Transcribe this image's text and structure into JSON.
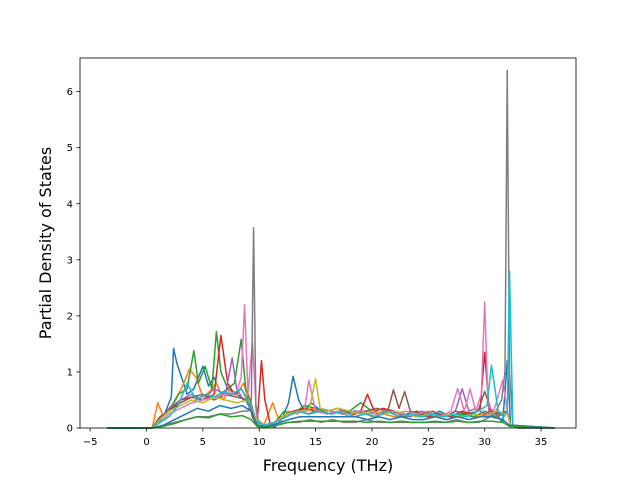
{
  "chart_data": {
    "type": "line",
    "title": "",
    "xlabel": "Frequency (THz)",
    "ylabel": "Partial Density of States",
    "xlim": [
      -5.9,
      38.1
    ],
    "ylim": [
      0,
      6.6
    ],
    "xticks": [
      -5,
      0,
      5,
      10,
      15,
      20,
      25,
      30,
      35
    ],
    "yticks": [
      0,
      1,
      2,
      3,
      4,
      5,
      6
    ],
    "grid": false,
    "legend": "none",
    "series": [
      {
        "color": "#1f77b4",
        "x": [
          -3.5,
          0.5,
          1.0,
          1.6,
          2.2,
          2.4,
          2.7,
          3.2,
          3.6,
          4.2,
          5.0,
          5.5,
          6.0,
          6.6,
          7.2,
          8.0,
          8.8,
          9.2,
          9.6,
          10.3,
          11.4,
          12.0,
          12.6,
          13.0,
          13.5,
          14.0,
          14.6,
          15.2,
          16.0,
          17.0,
          18.0,
          19.0,
          20.0,
          21.0,
          22.0,
          23.0,
          24.0,
          25.0,
          26.0,
          27.0,
          28.0,
          29.0,
          29.8,
          30.4,
          31.0,
          31.6,
          32.0,
          32.3,
          33.0,
          36.2
        ],
        "y": [
          0,
          0,
          0.08,
          0.25,
          0.55,
          1.42,
          1.15,
          0.85,
          0.6,
          0.7,
          1.1,
          0.75,
          0.9,
          0.6,
          0.7,
          0.6,
          0.5,
          0.35,
          0.2,
          0.05,
          0.02,
          0.15,
          0.45,
          0.92,
          0.5,
          0.3,
          0.45,
          0.35,
          0.25,
          0.3,
          0.3,
          0.25,
          0.3,
          0.25,
          0.3,
          0.2,
          0.25,
          0.2,
          0.3,
          0.2,
          0.25,
          0.2,
          0.2,
          0.3,
          0.25,
          0.1,
          1.2,
          0.05,
          0,
          0
        ]
      },
      {
        "color": "#ff7f0e",
        "x": [
          -3.5,
          0.5,
          1.0,
          1.5,
          2.0,
          2.6,
          3.2,
          3.8,
          4.4,
          5.0,
          5.6,
          6.2,
          6.8,
          7.4,
          8.0,
          8.6,
          9.2,
          9.6,
          10.4,
          11.2,
          11.8,
          12.6,
          13.4,
          14.2,
          15.0,
          16.0,
          17.0,
          18.0,
          19.0,
          20.0,
          21.0,
          22.0,
          23.0,
          24.0,
          25.0,
          26.0,
          27.0,
          28.0,
          29.0,
          30.0,
          31.0,
          32.0,
          32.3,
          36.2
        ],
        "y": [
          0,
          0,
          0.45,
          0.2,
          0.35,
          0.5,
          0.75,
          1.05,
          0.9,
          0.55,
          0.65,
          0.8,
          0.5,
          0.7,
          0.6,
          0.8,
          0.4,
          0.2,
          0.05,
          0.45,
          0.1,
          0.3,
          0.25,
          0.4,
          0.3,
          0.25,
          0.3,
          0.2,
          0.3,
          0.2,
          0.25,
          0.2,
          0.25,
          0.2,
          0.2,
          0.25,
          0.2,
          0.3,
          0.2,
          0.25,
          0.2,
          0.3,
          0.05,
          0
        ]
      },
      {
        "color": "#2ca02c",
        "x": [
          -3.5,
          0.5,
          1.2,
          2.0,
          2.8,
          3.6,
          4.2,
          4.6,
          5.2,
          5.8,
          6.2,
          6.6,
          7.2,
          7.8,
          8.4,
          8.8,
          9.2,
          9.6,
          10.4,
          11.4,
          12.2,
          13.0,
          14.0,
          15.0,
          16.0,
          17.0,
          18.0,
          19.0,
          20.0,
          21.0,
          22.0,
          23.0,
          24.0,
          25.0,
          26.0,
          27.0,
          28.0,
          29.0,
          30.0,
          31.0,
          32.0,
          32.3,
          36.2
        ],
        "y": [
          0,
          0,
          0.15,
          0.3,
          0.6,
          0.7,
          1.38,
          0.8,
          1.1,
          0.7,
          1.72,
          1.0,
          0.7,
          0.8,
          1.58,
          0.7,
          0.5,
          0.2,
          0.05,
          0.1,
          0.3,
          0.25,
          0.4,
          0.35,
          0.3,
          0.35,
          0.3,
          0.45,
          0.3,
          0.25,
          0.3,
          0.2,
          0.25,
          0.2,
          0.25,
          0.2,
          0.25,
          0.2,
          0.3,
          0.2,
          0.3,
          0.05,
          0
        ]
      },
      {
        "color": "#d62728",
        "x": [
          -3.5,
          0.5,
          1.2,
          2.0,
          3.0,
          4.0,
          5.0,
          6.0,
          6.6,
          7.2,
          7.8,
          8.4,
          9.0,
          9.4,
          9.8,
          10.2,
          10.5,
          11.0,
          12.0,
          13.0,
          14.0,
          15.0,
          16.0,
          17.0,
          18.0,
          19.0,
          19.6,
          20.2,
          21.0,
          22.0,
          23.0,
          24.0,
          25.0,
          26.0,
          27.0,
          28.0,
          29.0,
          29.6,
          30.0,
          30.4,
          31.0,
          32.0,
          32.3,
          36.2
        ],
        "y": [
          0,
          0,
          0.2,
          0.3,
          0.5,
          0.55,
          0.5,
          0.6,
          1.65,
          0.8,
          0.6,
          0.7,
          0.5,
          0.2,
          0.05,
          1.2,
          0.5,
          0.05,
          0.2,
          0.3,
          0.35,
          0.3,
          0.3,
          0.35,
          0.25,
          0.3,
          0.6,
          0.3,
          0.35,
          0.3,
          0.25,
          0.3,
          0.2,
          0.25,
          0.2,
          0.3,
          0.25,
          0.35,
          1.35,
          0.3,
          0.25,
          0.3,
          0.05,
          0
        ]
      },
      {
        "color": "#9467bd",
        "x": [
          -3.5,
          0.5,
          1.2,
          2.0,
          3.0,
          4.0,
          5.0,
          6.0,
          7.0,
          7.6,
          8.0,
          8.6,
          9.2,
          9.6,
          10.4,
          11.4,
          12.4,
          13.4,
          14.4,
          15.4,
          16.4,
          17.4,
          18.4,
          19.4,
          20.4,
          21.4,
          22.4,
          23.4,
          24.4,
          25.4,
          26.4,
          27.4,
          28.0,
          28.6,
          29.2,
          30.0,
          30.6,
          31.2,
          32.0,
          32.3,
          36.2
        ],
        "y": [
          0,
          0,
          0.15,
          0.35,
          0.5,
          0.6,
          0.5,
          0.7,
          0.6,
          1.25,
          0.7,
          0.5,
          0.45,
          0.2,
          0.05,
          0.1,
          0.25,
          0.3,
          0.25,
          0.35,
          0.3,
          0.25,
          0.3,
          0.3,
          0.25,
          0.3,
          0.25,
          0.2,
          0.3,
          0.25,
          0.2,
          0.3,
          0.7,
          0.3,
          0.35,
          0.25,
          0.3,
          0.2,
          0.3,
          0.05,
          0
        ]
      },
      {
        "color": "#8c564b",
        "x": [
          -3.5,
          0.5,
          1.2,
          2.0,
          3.0,
          4.0,
          5.0,
          6.0,
          7.0,
          8.0,
          9.0,
          9.6,
          10.4,
          11.4,
          12.4,
          13.4,
          14.4,
          15.4,
          16.4,
          17.4,
          18.4,
          19.4,
          20.4,
          21.4,
          21.9,
          22.4,
          22.9,
          23.4,
          24.4,
          25.4,
          26.4,
          27.4,
          28.4,
          29.4,
          30.0,
          30.6,
          31.4,
          32.0,
          32.3,
          36.2
        ],
        "y": [
          0,
          0,
          0.2,
          0.3,
          0.45,
          0.55,
          0.6,
          0.5,
          0.6,
          0.55,
          0.5,
          0.2,
          0.05,
          0.1,
          0.2,
          0.3,
          0.25,
          0.3,
          0.25,
          0.3,
          0.25,
          0.3,
          0.35,
          0.3,
          0.68,
          0.35,
          0.65,
          0.3,
          0.25,
          0.3,
          0.2,
          0.3,
          0.25,
          0.3,
          0.65,
          0.3,
          0.25,
          0.3,
          0.05,
          0
        ]
      },
      {
        "color": "#e377c2",
        "x": [
          -3.5,
          0.5,
          1.2,
          2.0,
          3.0,
          4.0,
          5.0,
          6.0,
          7.0,
          8.0,
          8.4,
          8.7,
          9.0,
          9.4,
          9.8,
          10.4,
          11.4,
          12.4,
          13.4,
          14.0,
          14.4,
          15.0,
          16.0,
          17.0,
          18.0,
          19.0,
          20.0,
          21.0,
          22.0,
          23.0,
          24.0,
          25.0,
          26.0,
          27.0,
          27.6,
          28.2,
          28.7,
          29.2,
          29.7,
          30.0,
          30.3,
          30.8,
          31.6,
          32.0,
          32.3,
          36.2
        ],
        "y": [
          0,
          0,
          0.1,
          0.25,
          0.35,
          0.45,
          0.5,
          0.55,
          0.6,
          0.65,
          0.9,
          2.2,
          0.6,
          1.55,
          0.05,
          0.02,
          0.1,
          0.2,
          0.3,
          0.3,
          0.85,
          0.3,
          0.25,
          0.3,
          0.25,
          0.3,
          0.25,
          0.3,
          0.25,
          0.3,
          0.25,
          0.3,
          0.2,
          0.3,
          0.7,
          0.3,
          0.7,
          0.3,
          0.6,
          2.25,
          0.4,
          0.3,
          0.85,
          0.3,
          0.05,
          0
        ]
      },
      {
        "color": "#7f7f7f",
        "x": [
          -3.5,
          0.5,
          1.5,
          2.5,
          3.5,
          4.5,
          5.5,
          6.5,
          7.5,
          8.5,
          9.0,
          9.3,
          9.5,
          9.7,
          10.0,
          10.5,
          11.5,
          12.5,
          13.5,
          14.5,
          15.5,
          16.5,
          17.5,
          18.5,
          19.5,
          20.5,
          21.5,
          22.5,
          23.5,
          24.5,
          25.5,
          26.5,
          27.5,
          28.5,
          29.5,
          30.5,
          31.0,
          31.5,
          31.8,
          32.0,
          32.2,
          32.5,
          33.0,
          36.2
        ],
        "y": [
          0,
          0,
          0.05,
          0.1,
          0.15,
          0.2,
          0.2,
          0.25,
          0.25,
          0.3,
          0.3,
          0.5,
          3.57,
          0.4,
          0.05,
          0.02,
          0.05,
          0.1,
          0.1,
          0.15,
          0.1,
          0.15,
          0.1,
          0.1,
          0.15,
          0.1,
          0.1,
          0.1,
          0.1,
          0.1,
          0.1,
          0.1,
          0.15,
          0.1,
          0.1,
          0.2,
          0.3,
          0.5,
          1.0,
          6.38,
          1.0,
          0.05,
          0,
          0
        ]
      },
      {
        "color": "#bcbd22",
        "x": [
          -3.5,
          0.5,
          1.2,
          2.0,
          3.0,
          4.0,
          5.0,
          6.0,
          7.0,
          8.0,
          9.0,
          9.6,
          10.4,
          11.4,
          12.4,
          13.4,
          14.4,
          15.0,
          15.4,
          16.0,
          17.0,
          18.0,
          19.0,
          20.0,
          21.0,
          22.0,
          23.0,
          24.0,
          25.0,
          26.0,
          27.0,
          28.0,
          29.0,
          30.0,
          31.0,
          32.0,
          32.3,
          36.2
        ],
        "y": [
          0,
          0,
          0.15,
          0.3,
          0.4,
          0.5,
          0.45,
          0.55,
          0.5,
          0.45,
          0.5,
          0.2,
          0.05,
          0.1,
          0.25,
          0.3,
          0.3,
          0.88,
          0.35,
          0.3,
          0.35,
          0.3,
          0.25,
          0.3,
          0.25,
          0.3,
          0.25,
          0.2,
          0.25,
          0.2,
          0.25,
          0.2,
          0.25,
          0.2,
          0.3,
          0.25,
          0.05,
          0
        ]
      },
      {
        "color": "#17becf",
        "x": [
          -3.5,
          0.5,
          1.2,
          2.0,
          2.8,
          3.6,
          4.4,
          5.2,
          6.0,
          6.8,
          7.6,
          8.4,
          9.2,
          9.6,
          10.4,
          11.4,
          12.4,
          13.4,
          14.4,
          15.4,
          16.4,
          17.4,
          18.4,
          19.4,
          20.4,
          21.4,
          22.4,
          23.4,
          24.4,
          25.4,
          26.4,
          27.4,
          28.4,
          29.4,
          30.2,
          30.6,
          31.2,
          31.7,
          32.0,
          32.2,
          32.5,
          36.2
        ],
        "y": [
          0,
          0,
          0.1,
          0.2,
          0.4,
          0.8,
          0.5,
          0.6,
          0.55,
          0.65,
          0.6,
          0.7,
          0.4,
          0.15,
          0.05,
          0.1,
          0.2,
          0.3,
          0.25,
          0.3,
          0.25,
          0.3,
          0.2,
          0.25,
          0.2,
          0.3,
          0.2,
          0.25,
          0.2,
          0.25,
          0.2,
          0.25,
          0.2,
          0.3,
          0.4,
          1.12,
          0.3,
          0.2,
          0.3,
          2.8,
          0.05,
          0
        ]
      },
      {
        "color": "#1f77b4",
        "x": [
          -3.5,
          0.5,
          1.5,
          2.5,
          3.5,
          4.5,
          5.5,
          6.5,
          7.5,
          8.5,
          9.3,
          9.8,
          10.6,
          11.6,
          12.6,
          13.6,
          14.6,
          15.6,
          16.6,
          17.6,
          18.6,
          19.6,
          20.6,
          21.6,
          22.6,
          23.6,
          24.6,
          25.6,
          26.6,
          27.6,
          28.6,
          29.6,
          30.6,
          31.6,
          32.2,
          36.2
        ],
        "y": [
          0,
          0,
          0.05,
          0.15,
          0.25,
          0.35,
          0.3,
          0.4,
          0.35,
          0.4,
          0.3,
          0.05,
          0.02,
          0.08,
          0.15,
          0.2,
          0.2,
          0.2,
          0.2,
          0.2,
          0.2,
          0.15,
          0.2,
          0.15,
          0.2,
          0.15,
          0.15,
          0.2,
          0.15,
          0.2,
          0.15,
          0.2,
          0.2,
          0.15,
          0.05,
          0
        ]
      },
      {
        "color": "#2ca02c",
        "x": [
          -3.5,
          0.5,
          1.5,
          2.5,
          3.5,
          4.5,
          5.5,
          6.5,
          7.5,
          8.5,
          9.3,
          9.8,
          10.6,
          11.6,
          12.6,
          13.6,
          14.6,
          15.6,
          16.6,
          17.6,
          18.6,
          19.6,
          20.6,
          21.6,
          22.6,
          23.6,
          24.6,
          25.6,
          26.6,
          27.6,
          28.6,
          29.6,
          30.6,
          31.6,
          32.2,
          36.2
        ],
        "y": [
          0,
          0,
          0.03,
          0.08,
          0.15,
          0.2,
          0.18,
          0.25,
          0.2,
          0.22,
          0.15,
          0.03,
          0.01,
          0.05,
          0.1,
          0.12,
          0.12,
          0.12,
          0.12,
          0.12,
          0.12,
          0.1,
          0.12,
          0.1,
          0.12,
          0.1,
          0.1,
          0.12,
          0.1,
          0.12,
          0.1,
          0.12,
          0.12,
          0.1,
          0.03,
          0
        ]
      }
    ]
  }
}
